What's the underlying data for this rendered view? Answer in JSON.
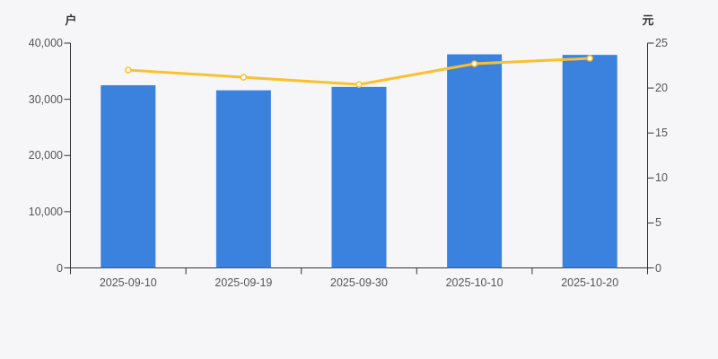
{
  "background": "#f6f6f8",
  "chart_data": {
    "type": "bar",
    "categories": [
      "2025-09-10",
      "2025-09-19",
      "2025-09-30",
      "2025-10-10",
      "2025-10-20"
    ],
    "series": [
      {
        "name": "户",
        "type": "bar",
        "axis": "left",
        "color": "#3b82de",
        "values": [
          32500,
          31600,
          32200,
          38000,
          37900
        ]
      },
      {
        "name": "元",
        "type": "line",
        "axis": "right",
        "color": "#fbc02d",
        "marker_fill": "#ffffff",
        "values": [
          22.0,
          21.2,
          20.4,
          22.7,
          23.3
        ]
      }
    ],
    "left_axis": {
      "name": "户",
      "min": 0,
      "max": 40000,
      "ticks": [
        "0",
        "10,000",
        "20,000",
        "30,000",
        "40,000"
      ]
    },
    "right_axis": {
      "name": "元",
      "min": 0,
      "max": 25,
      "ticks": [
        "0",
        "5",
        "10",
        "15",
        "20",
        "25"
      ]
    },
    "title": "",
    "grid": false,
    "legend": false,
    "axis_color": "#333333",
    "label_color": "#555555"
  }
}
